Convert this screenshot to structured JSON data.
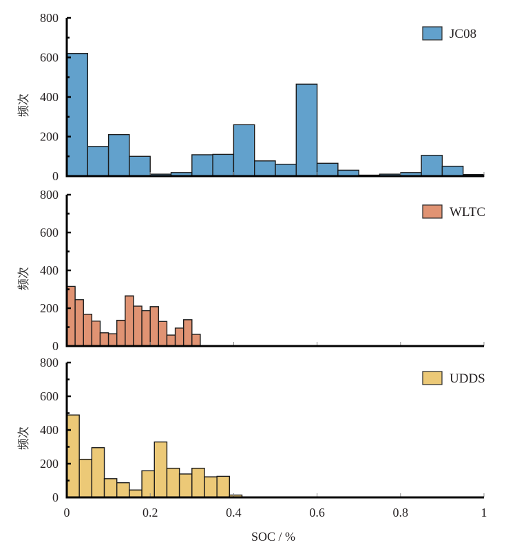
{
  "chart_data": [
    {
      "type": "bar",
      "subtype": "histogram",
      "legend": "JC08",
      "legend_position": "top-right",
      "color": "#62a1cc",
      "ylabel": "频次",
      "xlabel": "",
      "ylim": [
        0,
        800
      ],
      "yticks": [
        "0",
        "200",
        "400",
        "600",
        "800"
      ],
      "xlim": [
        0,
        1
      ],
      "bin_width": 0.05,
      "bin_edges_start": 0,
      "values": [
        620,
        150,
        210,
        100,
        10,
        18,
        108,
        110,
        260,
        77,
        60,
        465,
        65,
        30,
        5,
        10,
        18,
        105,
        50,
        8
      ]
    },
    {
      "type": "bar",
      "subtype": "histogram",
      "legend": "WLTC",
      "legend_position": "top-right",
      "color": "#e09373",
      "ylabel": "频次",
      "xlabel": "",
      "ylim": [
        0,
        800
      ],
      "yticks": [
        "0",
        "200",
        "400",
        "600",
        "800"
      ],
      "xlim": [
        0,
        1
      ],
      "bin_width": 0.02,
      "bin_edges_start": 0,
      "values": [
        315,
        245,
        168,
        132,
        70,
        65,
        136,
        265,
        211,
        187,
        208,
        130,
        58,
        95,
        139,
        62
      ]
    },
    {
      "type": "bar",
      "subtype": "histogram",
      "legend": "UDDS",
      "legend_position": "top-right",
      "color": "#ecc977",
      "ylabel": "频次",
      "xlabel": "SOC / %",
      "ylim": [
        0,
        800
      ],
      "yticks": [
        "0",
        "200",
        "400",
        "600",
        "800"
      ],
      "xlim": [
        0,
        1
      ],
      "xticks": [
        "0",
        "0.2",
        "0.4",
        "0.6",
        "0.8",
        "1"
      ],
      "bin_width": 0.03,
      "bin_edges_start": 0,
      "values": [
        489,
        226,
        295,
        111,
        87,
        44,
        158,
        329,
        173,
        139,
        173,
        122,
        125,
        14
      ]
    }
  ]
}
